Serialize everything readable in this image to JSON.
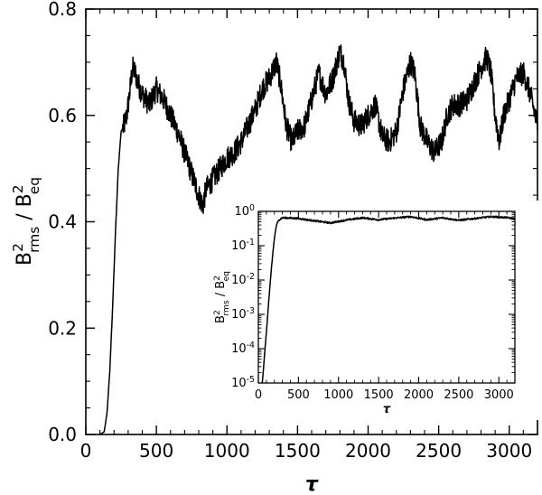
{
  "chart_data": [
    {
      "type": "line",
      "xlabel": "τ",
      "ylabel": {
        "base": "B",
        "sup": "2",
        "sub": "rms",
        "sep": " / ",
        "base2": "B",
        "sup2": "2",
        "sub2": "eq"
      },
      "xlim": [
        0,
        3200
      ],
      "ylim": [
        0,
        0.8
      ],
      "xticks": [
        0,
        500,
        1000,
        1500,
        2000,
        2500,
        3000
      ],
      "xtick_labels": [
        "0",
        "500",
        "1000",
        "1500",
        "2000",
        "2500",
        "3000"
      ],
      "yticks": [
        0.0,
        0.2,
        0.4,
        0.6,
        0.8
      ],
      "ytick_labels": [
        "0.0",
        "0.2",
        "0.4",
        "0.6",
        "0.8"
      ],
      "grid": false,
      "series": [
        {
          "x": [
            100,
            130,
            150,
            170,
            190,
            210,
            230,
            250,
            270,
            290,
            310,
            330,
            350,
            370,
            400,
            450,
            500,
            550,
            600,
            650,
            700,
            750,
            800,
            830,
            850,
            900,
            950,
            1000,
            1050,
            1100,
            1150,
            1200,
            1250,
            1300,
            1350,
            1380,
            1420,
            1460,
            1500,
            1550,
            1600,
            1650,
            1700,
            1750,
            1800,
            1830,
            1860,
            1900,
            1950,
            2000,
            2050,
            2100,
            2150,
            2200,
            2250,
            2300,
            2330,
            2370,
            2420,
            2470,
            2520,
            2560,
            2600,
            2650,
            2700,
            2750,
            2800,
            2840,
            2870,
            2900,
            2930,
            2960,
            3000,
            3050,
            3100,
            3150,
            3200
          ],
          "y": [
            0.0,
            0.005,
            0.04,
            0.12,
            0.24,
            0.38,
            0.5,
            0.57,
            0.58,
            0.6,
            0.64,
            0.69,
            0.68,
            0.66,
            0.64,
            0.62,
            0.65,
            0.63,
            0.6,
            0.57,
            0.53,
            0.49,
            0.45,
            0.43,
            0.46,
            0.48,
            0.5,
            0.52,
            0.53,
            0.55,
            0.58,
            0.61,
            0.65,
            0.67,
            0.7,
            0.66,
            0.58,
            0.55,
            0.57,
            0.58,
            0.63,
            0.68,
            0.64,
            0.67,
            0.72,
            0.7,
            0.63,
            0.59,
            0.58,
            0.6,
            0.62,
            0.56,
            0.55,
            0.57,
            0.65,
            0.7,
            0.68,
            0.58,
            0.55,
            0.53,
            0.55,
            0.6,
            0.62,
            0.62,
            0.63,
            0.66,
            0.69,
            0.71,
            0.68,
            0.6,
            0.55,
            0.6,
            0.63,
            0.67,
            0.68,
            0.64,
            0.58
          ]
        }
      ]
    },
    {
      "type": "line",
      "xlabel": "τ",
      "ylabel": {
        "base": "B",
        "sup": "2",
        "sub": "rms",
        "sep": " / ",
        "base2": "B",
        "sup2": "2",
        "sub2": "eq"
      },
      "xlim": [
        0,
        3200
      ],
      "ylim": [
        1e-05,
        1
      ],
      "yscale": "log",
      "xticks": [
        0,
        500,
        1000,
        1500,
        2000,
        2500,
        3000
      ],
      "xtick_labels": [
        "0",
        "500",
        "1000",
        "1500",
        "2000",
        "2500",
        "3000"
      ],
      "yticks": [
        1e-05,
        0.0001,
        0.001,
        0.01,
        0.1,
        1
      ],
      "ytick_labels": [
        {
          "base": "10",
          "exp": "-5"
        },
        {
          "base": "10",
          "exp": "-4"
        },
        {
          "base": "10",
          "exp": "-3"
        },
        {
          "base": "10",
          "exp": "-2"
        },
        {
          "base": "10",
          "exp": "-1"
        },
        {
          "base": "10",
          "exp": "0"
        }
      ],
      "grid": false,
      "series": [
        {
          "x": [
            45,
            60,
            80,
            100,
            120,
            140,
            160,
            180,
            200,
            220,
            240,
            260,
            300,
            400,
            500,
            700,
            900,
            1100,
            1300,
            1500,
            1700,
            1900,
            2100,
            2300,
            2500,
            2700,
            2900,
            3100,
            3200
          ],
          "y": [
            8e-06,
            2e-05,
            8e-05,
            0.0003,
            0.0012,
            0.005,
            0.018,
            0.06,
            0.16,
            0.34,
            0.5,
            0.57,
            0.65,
            0.64,
            0.62,
            0.53,
            0.46,
            0.56,
            0.65,
            0.57,
            0.64,
            0.7,
            0.57,
            0.65,
            0.55,
            0.62,
            0.7,
            0.66,
            0.6
          ]
        }
      ]
    }
  ]
}
